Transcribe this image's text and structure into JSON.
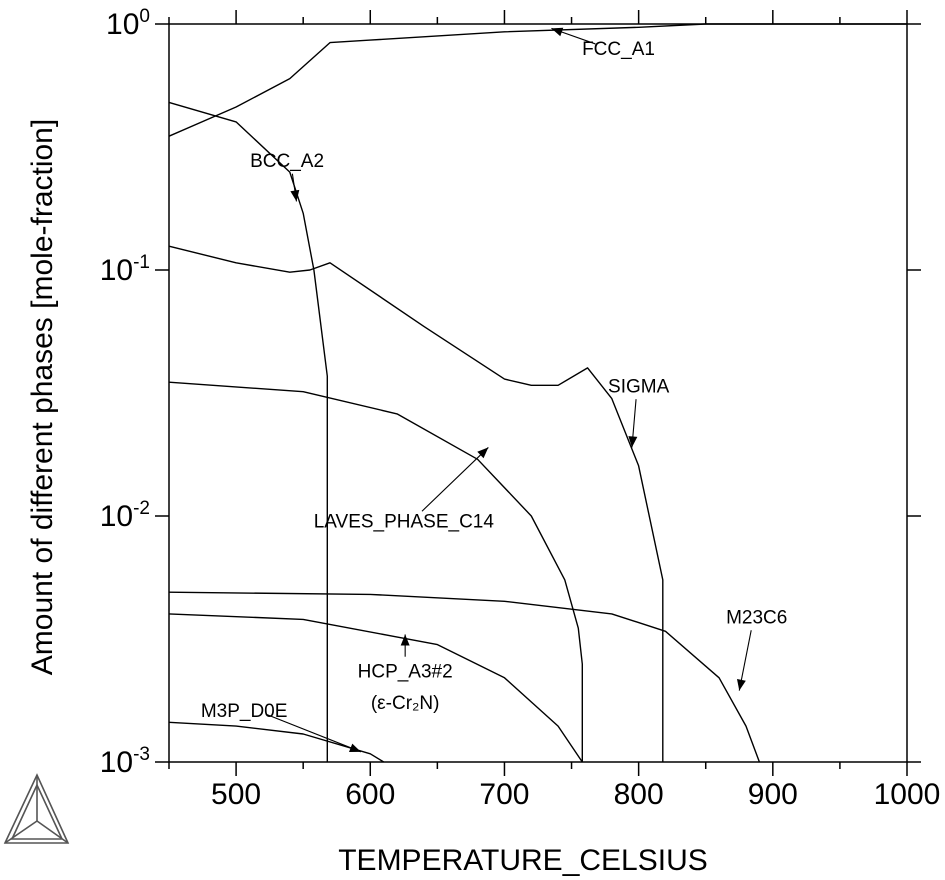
{
  "chart_data": {
    "type": "line",
    "xlabel": "TEMPERATURE_CELSIUS",
    "ylabel": "Amount of different phases [mole-fraction]",
    "xlim": [
      450,
      1000
    ],
    "ylim": [
      0.001,
      1
    ],
    "yscale": "log",
    "grid": false,
    "x_ticks": [
      "500",
      "600",
      "700",
      "800",
      "900",
      "1000"
    ],
    "y_ticks": [
      {
        "base": "10",
        "exp": "0",
        "value": 1
      },
      {
        "base": "10",
        "exp": "-1",
        "value": 0.1
      },
      {
        "base": "10",
        "exp": "-2",
        "value": 0.01
      },
      {
        "base": "10",
        "exp": "-3",
        "value": 0.001
      }
    ],
    "series": [
      {
        "name": "FCC_A1",
        "x": [
          450,
          500,
          540,
          570,
          600,
          700,
          800,
          850,
          1000
        ],
        "y": [
          0.35,
          0.46,
          0.6,
          0.84,
          0.86,
          0.93,
          0.97,
          1.0,
          1.0
        ]
      },
      {
        "name": "BCC_A2",
        "x": [
          450,
          500,
          540,
          550,
          558,
          568,
          568
        ],
        "y": [
          0.48,
          0.4,
          0.25,
          0.17,
          0.1,
          0.037,
          0.001
        ]
      },
      {
        "name": "SIGMA",
        "x": [
          450,
          500,
          540,
          555,
          570,
          640,
          700,
          720,
          740,
          762,
          780,
          800,
          818,
          818
        ],
        "y": [
          0.125,
          0.107,
          0.098,
          0.1,
          0.107,
          0.059,
          0.036,
          0.034,
          0.034,
          0.04,
          0.03,
          0.016,
          0.0055,
          0.001
        ]
      },
      {
        "name": "LAVES_PHASE_C14",
        "x": [
          450,
          550,
          620,
          680,
          720,
          745,
          755,
          758,
          758
        ],
        "y": [
          0.035,
          0.032,
          0.026,
          0.017,
          0.01,
          0.0055,
          0.0035,
          0.0025,
          0.001
        ]
      },
      {
        "name": "M23C6",
        "x": [
          450,
          600,
          700,
          780,
          820,
          860,
          880,
          890
        ],
        "y": [
          0.0049,
          0.0048,
          0.0045,
          0.004,
          0.0034,
          0.0022,
          0.0014,
          0.001
        ]
      },
      {
        "name": "HCP_A3#2",
        "x": [
          450,
          550,
          650,
          700,
          740,
          758
        ],
        "y": [
          0.004,
          0.0038,
          0.003,
          0.0022,
          0.0014,
          0.001
        ]
      },
      {
        "name": "M3P_D0E",
        "x": [
          450,
          500,
          550,
          600,
          610
        ],
        "y": [
          0.00145,
          0.0014,
          0.0013,
          0.00108,
          0.001
        ]
      }
    ],
    "annotations": [
      {
        "text": "FCC_A1",
        "x": 785,
        "y": 0.8,
        "target_x": 735,
        "target_y": 0.96
      },
      {
        "text": "BCC_A2",
        "x": 538,
        "y": 0.28,
        "target_x": 545,
        "target_y": 0.19
      },
      {
        "text": "SIGMA",
        "x": 800,
        "y": 0.034,
        "target_x": 795,
        "target_y": 0.019
      },
      {
        "text": "LAVES_PHASE_C14",
        "x": 625,
        "y": 0.0096,
        "target_x": 688,
        "target_y": 0.019
      },
      {
        "text": "M23C6",
        "x": 888,
        "y": 0.0039,
        "target_x": 875,
        "target_y": 0.00195
      },
      {
        "text": "HCP_A3#2",
        "x": 626,
        "y": 0.00235,
        "target_x": 626,
        "target_y": 0.0033
      },
      {
        "text": "(ε-Cr₂N)",
        "x": 626,
        "y": 0.00175
      },
      {
        "text": "M3P_D0E",
        "x": 506,
        "y": 0.00163,
        "target_x": 593,
        "target_y": 0.0011
      }
    ]
  }
}
